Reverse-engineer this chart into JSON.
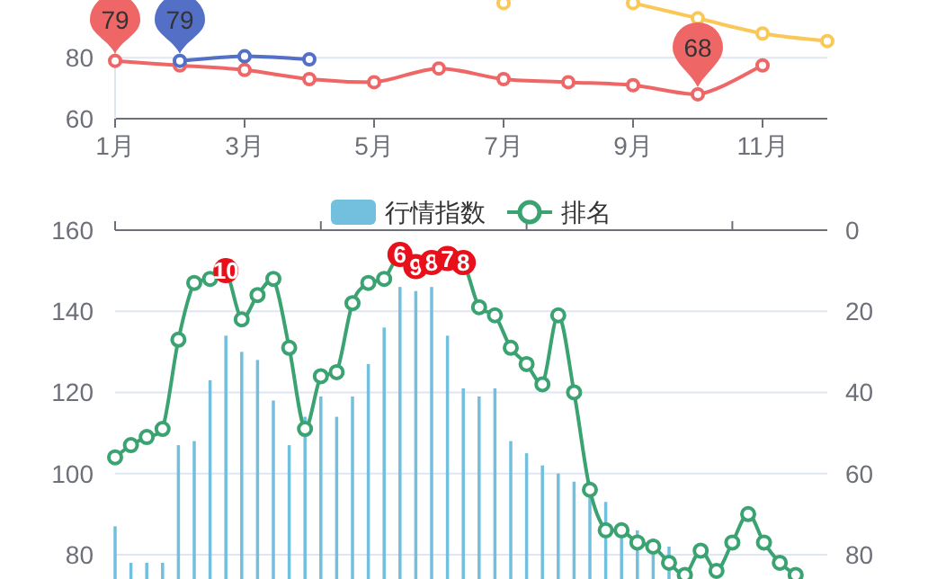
{
  "chart_data": [
    {
      "type": "line",
      "categories": [
        "1月",
        null,
        "3月",
        null,
        "5月",
        null,
        "7月",
        null,
        "9月",
        null,
        "11月",
        null
      ],
      "series": [
        {
          "color": "#5470c6",
          "values": [
            null,
            79,
            80.5,
            79.5,
            null,
            null,
            null,
            null,
            null,
            null,
            null,
            null
          ]
        },
        {
          "color": "#ee6666",
          "values": [
            79,
            77.5,
            76,
            73,
            72,
            76.5,
            73,
            72,
            71,
            68,
            77.5,
            null
          ]
        },
        {
          "color": "#fac858",
          "values": [
            null,
            null,
            null,
            null,
            null,
            null,
            98,
            null,
            98,
            93,
            88,
            85.5
          ]
        }
      ],
      "ylim": [
        60,
        99
      ],
      "yticks": [
        60,
        80
      ],
      "grid": "y",
      "marker": "circle",
      "annotations": [
        {
          "text": "79",
          "x": "1月",
          "y": 79
        },
        {
          "text": "79",
          "y": 79
        },
        {
          "text": "68",
          "y": 68
        }
      ]
    },
    {
      "type": "bar",
      "categories": [
        null,
        null,
        null,
        null,
        null,
        null,
        null,
        null,
        null,
        null,
        null,
        null,
        null,
        null,
        null,
        null,
        null,
        null,
        null,
        null,
        null,
        null,
        null,
        null,
        null,
        null,
        null,
        null,
        null,
        null,
        null,
        null,
        null,
        null,
        null,
        null,
        null,
        null,
        null,
        null,
        null,
        null,
        null,
        null,
        null,
        null
      ],
      "series": [
        {
          "name": "行情指数",
          "color": "#73c0de",
          "values": [
            87,
            78,
            78,
            78,
            107,
            108,
            123,
            134,
            130,
            128,
            118,
            107,
            114,
            119,
            114,
            119,
            127,
            136,
            146,
            145,
            146,
            134,
            121,
            119,
            121,
            108,
            105,
            102,
            100,
            98,
            98,
            93,
            88,
            86,
            84,
            82,
            null,
            null,
            null,
            null,
            null,
            null,
            null,
            null,
            null,
            null
          ]
        },
        {
          "name": "排名",
          "type": "line",
          "axis": "y2",
          "color": "#3ba272",
          "values": [
            56,
            53,
            51,
            49,
            27,
            13,
            12,
            10,
            22,
            16,
            12,
            29,
            49,
            36,
            35,
            18,
            13,
            12,
            6,
            9,
            8,
            7,
            8,
            19,
            21,
            29,
            33,
            38,
            21,
            40,
            64,
            74,
            74,
            77,
            78,
            82,
            85,
            79,
            84,
            77,
            70,
            77,
            82,
            85,
            null,
            null
          ],
          "value_labels": [
            null,
            null,
            null,
            null,
            null,
            null,
            null,
            "10",
            null,
            null,
            null,
            null,
            null,
            null,
            null,
            null,
            null,
            null,
            "6",
            "9",
            "8",
            "7",
            "8",
            null,
            null,
            null,
            null,
            null,
            null,
            null,
            null,
            null,
            null,
            null,
            null,
            null,
            null,
            null,
            null,
            null,
            null,
            null,
            null,
            null,
            null,
            null
          ]
        }
      ],
      "ylim": [
        74,
        160
      ],
      "yticks": [
        80,
        100,
        120,
        140,
        160
      ],
      "y2lim": [
        86,
        0
      ],
      "y2ticks": [
        0,
        20,
        40,
        60,
        80
      ],
      "grid": "y",
      "legend": "top",
      "marker": "circle"
    }
  ]
}
